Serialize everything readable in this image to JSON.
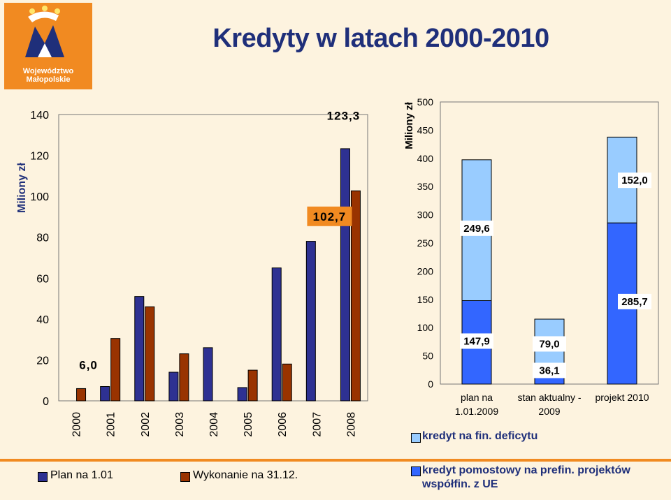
{
  "header": {
    "logo_line1": "Województwo",
    "logo_line2": "Małopolskie",
    "title": "Kredyty w latach 2000-2010"
  },
  "chart_data": [
    {
      "type": "bar",
      "title": "",
      "xlabel": "",
      "ylabel": "Miliony zł",
      "ylim": [
        0,
        140
      ],
      "yticks": [
        0,
        20,
        40,
        60,
        80,
        100,
        120,
        140
      ],
      "categories": [
        "2000",
        "2001",
        "2002",
        "2003",
        "2004",
        "2005",
        "2006",
        "2007",
        "2008"
      ],
      "series": [
        {
          "name": "Plan na 1.01",
          "color": "#2e3192",
          "values": [
            0,
            7,
            51,
            14,
            26,
            6.5,
            65,
            78,
            123.3
          ]
        },
        {
          "name": "Wykonanie na 31.12.",
          "color": "#993300",
          "values": [
            6,
            30.5,
            46,
            23,
            0,
            15,
            18,
            0,
            102.7
          ]
        }
      ],
      "data_labels": [
        "6,0",
        "123,3",
        "102,7"
      ],
      "legend_placement": "bottom",
      "grid": false
    },
    {
      "type": "bar",
      "stacked": true,
      "title": "",
      "xlabel": "",
      "ylabel": "Miliony zł",
      "ylim": [
        0,
        500
      ],
      "yticks": [
        0,
        50,
        100,
        150,
        200,
        250,
        300,
        350,
        400,
        450,
        500
      ],
      "categories": [
        "plan na 1.01.2009",
        "stan aktualny - 2009",
        "projekt 2010"
      ],
      "category_lines": [
        [
          "plan na",
          "1.01.2009"
        ],
        [
          "stan aktualny -",
          "2009"
        ],
        [
          "projekt 2010"
        ]
      ],
      "series": [
        {
          "name": "kredyt pomostowy na prefin. projektów współfin. z UE",
          "color": "#3366ff",
          "values": [
            147.9,
            36.1,
            285.7
          ]
        },
        {
          "name": "kredyt na fin. deficytu",
          "color": "#99ccff",
          "values": [
            249.6,
            79.0,
            152.0
          ]
        }
      ],
      "data_labels": [
        [
          "147,9",
          "249,6"
        ],
        [
          "36,1",
          "79,0"
        ],
        [
          "285,7",
          "152,0"
        ]
      ],
      "legend_placement": "bottom",
      "grid": false
    }
  ]
}
